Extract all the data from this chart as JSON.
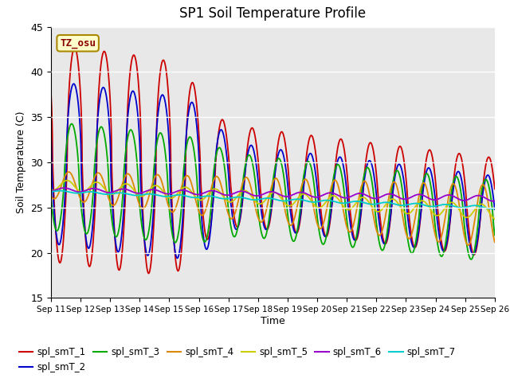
{
  "title": "SP1 Soil Temperature Profile",
  "xlabel": "Time",
  "ylabel": "Soil Temperature (C)",
  "ylim": [
    15,
    45
  ],
  "annotation": "TZ_osu",
  "background_color": "#e8e8e8",
  "fig_color": "#ffffff",
  "series_colors": [
    "#cc0000",
    "#0000cc",
    "#00aa00",
    "#dd8800",
    "#cccc00",
    "#9900cc",
    "#00cccc"
  ],
  "legend_labels": [
    "spl_smT_1",
    "spl_smT_2",
    "spl_smT_3",
    "spl_smT_4",
    "spl_smT_5",
    "spl_smT_6",
    "spl_smT_7"
  ],
  "xtick_labels": [
    "Sep 11",
    "Sep 12",
    "Sep 13",
    "Sep 14",
    "Sep 15",
    "Sep 16",
    "Sep 17",
    "Sep 18",
    "Sep 19",
    "Sep 20",
    "Sep 21",
    "Sep 22",
    "Sep 23",
    "Sep 24",
    "Sep 25",
    "Sep 26"
  ],
  "ytick_values": [
    15,
    20,
    25,
    30,
    35,
    40,
    45
  ],
  "n_days": 15,
  "start_day": 11
}
